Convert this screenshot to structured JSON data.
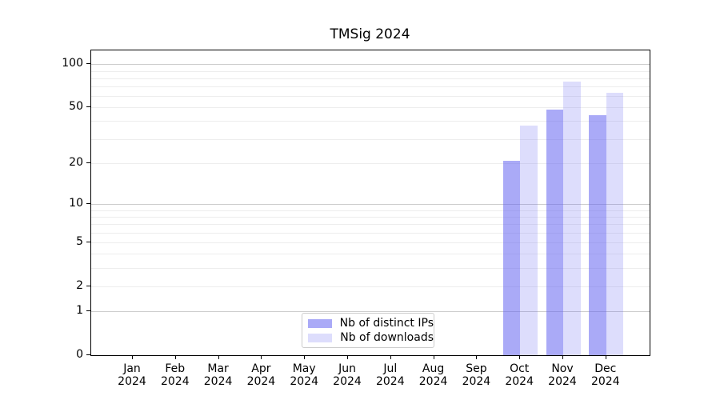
{
  "title": "TMSig 2024",
  "chart_data": {
    "type": "bar",
    "title": "TMSig 2024",
    "categories": [
      "Jan 2024",
      "Feb 2024",
      "Mar 2024",
      "Apr 2024",
      "May 2024",
      "Jun 2024",
      "Jul 2024",
      "Aug 2024",
      "Sep 2024",
      "Oct 2024",
      "Nov 2024",
      "Dec 2024"
    ],
    "x_months": [
      "Jan",
      "Feb",
      "Mar",
      "Apr",
      "May",
      "Jun",
      "Jul",
      "Aug",
      "Sep",
      "Oct",
      "Nov",
      "Dec"
    ],
    "x_year": "2024",
    "series": [
      {
        "name": "Nb of distinct IPs",
        "color": "rgba(100,100,240,0.55)",
        "values": [
          0,
          0,
          0,
          0,
          0,
          0,
          0,
          0,
          0,
          21,
          48,
          44
        ]
      },
      {
        "name": "Nb of downloads",
        "color": "rgba(100,100,240,0.22)",
        "values": [
          0,
          0,
          0,
          0,
          0,
          0,
          0,
          0,
          0,
          37,
          76,
          63
        ]
      }
    ],
    "xlabel": "",
    "ylabel": "",
    "y_axis": {
      "scale": "log1p",
      "ylim": [
        0,
        125
      ],
      "ticks": [
        0,
        1,
        2,
        5,
        10,
        20,
        50,
        100
      ],
      "emphasized_gridlines": [
        1,
        10,
        100
      ],
      "minor_gridlines": [
        3,
        4,
        6,
        7,
        8,
        9,
        30,
        40,
        60,
        70,
        80,
        90
      ]
    },
    "grid": true,
    "legend_position": "lower center"
  },
  "colors": {
    "bar_base": "#6464f0",
    "grid_major": "#cdcdcd",
    "grid_minor": "#ededed",
    "spine": "#000000",
    "text": "#000000",
    "legend_border": "#cccccc",
    "background": "#ffffff"
  }
}
